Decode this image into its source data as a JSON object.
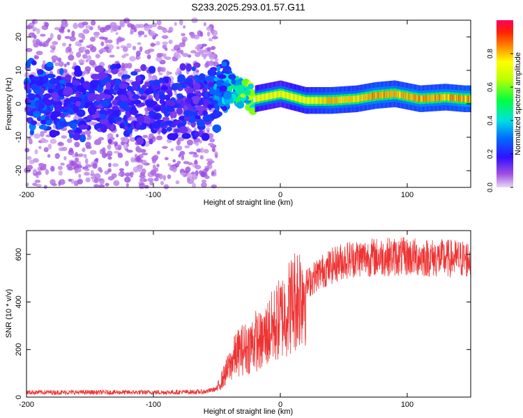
{
  "title": "S233.2025.293.01.57.G11",
  "chart_data": [
    {
      "type": "heatmap",
      "xlabel": "Height of straight line (km)",
      "ylabel": "Frequency (Hz)",
      "xlim": [
        -200,
        150
      ],
      "ylim": [
        -25,
        25
      ],
      "xticks": [
        -200,
        -100,
        0,
        100
      ],
      "yticks": [
        -20,
        -10,
        0,
        10,
        20
      ],
      "colorbar": {
        "label": "Normalized spectral amplitude",
        "range": [
          0,
          1
        ],
        "ticks": [
          0.0,
          0.2,
          0.4,
          0.6,
          0.8
        ],
        "colormap": "rainbow"
      },
      "description_points": [
        {
          "x": -180,
          "freq": 1,
          "amp": 0.25
        },
        {
          "x": -150,
          "freq": 0,
          "amp": 0.22
        },
        {
          "x": -120,
          "freq": 0,
          "amp": 0.2
        },
        {
          "x": -90,
          "freq": 0,
          "amp": 0.2
        },
        {
          "x": -60,
          "freq": 1,
          "amp": 0.22
        },
        {
          "x": -45,
          "freq": 5,
          "amp": 0.3
        },
        {
          "x": -35,
          "freq": 4,
          "amp": 0.4
        },
        {
          "x": -20,
          "freq": 1.5,
          "amp": 0.6
        },
        {
          "x": 0,
          "freq": 3,
          "amp": 0.5
        },
        {
          "x": 20,
          "freq": 1,
          "amp": 0.7
        },
        {
          "x": 40,
          "freq": 1,
          "amp": 0.85
        },
        {
          "x": 60,
          "freq": 1.5,
          "amp": 0.8
        },
        {
          "x": 75,
          "freq": 2.5,
          "amp": 0.9
        },
        {
          "x": 90,
          "freq": 3,
          "amp": 0.85
        },
        {
          "x": 110,
          "freq": 1.5,
          "amp": 0.9
        },
        {
          "x": 130,
          "freq": 2,
          "amp": 0.88
        },
        {
          "x": 145,
          "freq": 1.5,
          "amp": 0.95
        }
      ]
    },
    {
      "type": "line",
      "xlabel": "Height of straight line (km)",
      "ylabel": "SNR (10 * v/v)",
      "xlim": [
        -200,
        150
      ],
      "ylim": [
        0,
        700
      ],
      "xticks": [
        -200,
        -100,
        0,
        100
      ],
      "yticks": [
        0,
        200,
        400,
        600
      ],
      "series": [
        {
          "name": "SNR",
          "color": "#ee3333",
          "x": [
            -200,
            -150,
            -100,
            -60,
            -50,
            -40,
            -35,
            -30,
            -25,
            -20,
            -15,
            -10,
            -5,
            0,
            10,
            20,
            30,
            40,
            50,
            60,
            80,
            100,
            120,
            150
          ],
          "y": [
            20,
            20,
            20,
            22,
            35,
            130,
            180,
            200,
            210,
            240,
            230,
            270,
            300,
            330,
            400,
            470,
            520,
            550,
            575,
            585,
            590,
            590,
            585,
            580
          ]
        }
      ]
    }
  ]
}
